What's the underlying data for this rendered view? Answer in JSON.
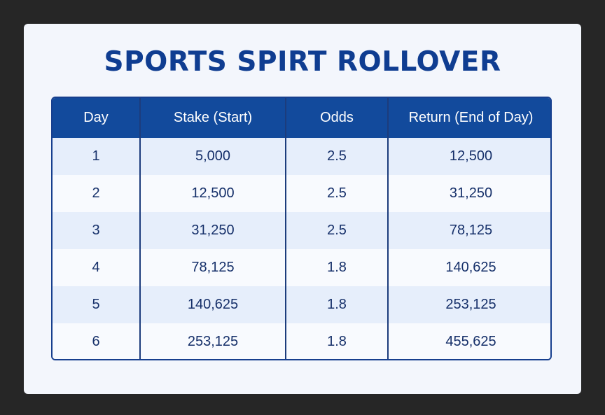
{
  "title": "SPORTS SPIRT ROLLOVER",
  "table": {
    "headers": [
      "Day",
      "Stake (Start)",
      "Odds",
      "Return (End of Day)"
    ],
    "rows": [
      [
        "1",
        "5,000",
        "2.5",
        "12,500"
      ],
      [
        "2",
        "12,500",
        "2.5",
        "31,250"
      ],
      [
        "3",
        "31,250",
        "2.5",
        "78,125"
      ],
      [
        "4",
        "78,125",
        "1.8",
        "140,625"
      ],
      [
        "5",
        "140,625",
        "1.8",
        "253,125"
      ],
      [
        "6",
        "253,125",
        "1.8",
        "455,625"
      ]
    ]
  },
  "colors": {
    "background": "#262626",
    "card": "#f3f6fc",
    "title": "#0f3d91",
    "header_bg": "#124a9c",
    "row_alt": "#e6eefb",
    "text": "#16306a"
  }
}
